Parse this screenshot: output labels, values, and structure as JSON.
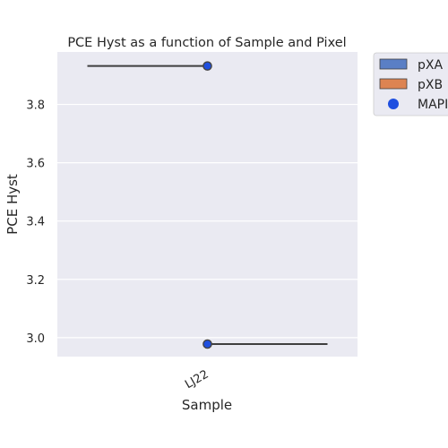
{
  "chart_data": {
    "type": "violin",
    "title": "PCE Hyst as a function of Sample and Pixel",
    "xlabel": "Sample",
    "ylabel": "PCE Hyst",
    "categories": [
      "LJ22"
    ],
    "ylim": [
      2.935,
      3.98
    ],
    "yticks": [
      3.0,
      3.2,
      3.4,
      3.6,
      3.8
    ],
    "ytick_labels": [
      "3.0",
      "3.2",
      "3.4",
      "3.6",
      "3.8"
    ],
    "grid": true,
    "legend_placement": "outside-top-right",
    "series": [
      {
        "name": "pXA",
        "kind": "half-violin",
        "side": "left",
        "color": "#5a7fc5",
        "values": [
          3.932
        ]
      },
      {
        "name": "pXB",
        "kind": "half-violin",
        "side": "right",
        "color": "#dd8452",
        "values": [
          2.978
        ]
      },
      {
        "name": "MAPI",
        "kind": "points",
        "color": "#1f4fe0",
        "points": [
          {
            "category": "LJ22",
            "y": 3.932
          },
          {
            "category": "LJ22",
            "y": 2.978
          }
        ]
      }
    ],
    "colors": {
      "background": "#eaeaf2",
      "grid": "#ffffff",
      "line": "#3f3f3f"
    }
  }
}
